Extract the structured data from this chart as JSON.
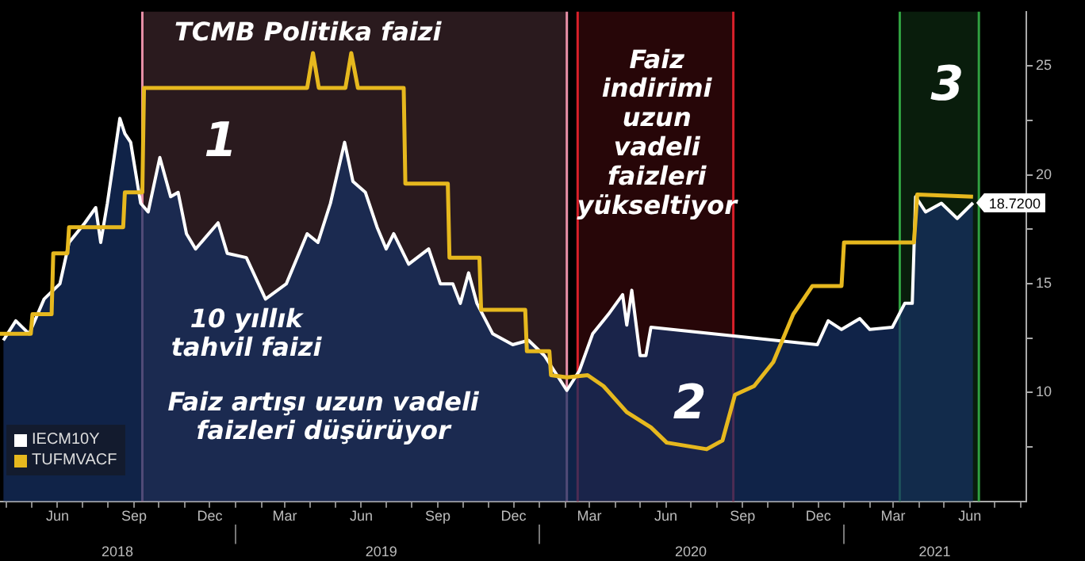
{
  "chart_data": {
    "type": "line",
    "xlim": [
      "2018-03-24",
      "2021-08-08"
    ],
    "ylim": [
      5,
      27.5
    ],
    "yticks": [
      {
        "value": 7.5,
        "label": null
      },
      10,
      {
        "value": 12.5,
        "label": null
      },
      15,
      {
        "value": 17.5,
        "label": null
      },
      20,
      {
        "value": 22.5,
        "label": null
      },
      25
    ],
    "xticks": [
      {
        "value": "2018-04-01",
        "label": null
      },
      {
        "value": "2018-05-01",
        "label": null
      },
      {
        "value": "2018-06-01",
        "label": "Jun"
      },
      {
        "value": "2018-07-01",
        "label": null
      },
      {
        "value": "2018-08-01",
        "label": null
      },
      {
        "value": "2018-09-01",
        "label": "Sep"
      },
      {
        "value": "2018-10-01",
        "label": null
      },
      {
        "value": "2018-11-01",
        "label": null
      },
      {
        "value": "2018-12-01",
        "label": "Dec"
      },
      {
        "value": "2019-01-01",
        "label": null
      },
      {
        "value": "2019-02-01",
        "label": null
      },
      {
        "value": "2019-03-01",
        "label": "Mar"
      },
      {
        "value": "2019-04-01",
        "label": null
      },
      {
        "value": "2019-05-01",
        "label": null
      },
      {
        "value": "2019-06-01",
        "label": "Jun"
      },
      {
        "value": "2019-07-01",
        "label": null
      },
      {
        "value": "2019-08-01",
        "label": null
      },
      {
        "value": "2019-09-01",
        "label": "Sep"
      },
      {
        "value": "2019-10-01",
        "label": null
      },
      {
        "value": "2019-11-01",
        "label": null
      },
      {
        "value": "2019-12-01",
        "label": "Dec"
      },
      {
        "value": "2020-01-01",
        "label": null
      },
      {
        "value": "2020-02-01",
        "label": null
      },
      {
        "value": "2020-03-01",
        "label": "Mar"
      },
      {
        "value": "2020-04-01",
        "label": null
      },
      {
        "value": "2020-05-01",
        "label": null
      },
      {
        "value": "2020-06-01",
        "label": "Jun"
      },
      {
        "value": "2020-07-01",
        "label": null
      },
      {
        "value": "2020-08-01",
        "label": null
      },
      {
        "value": "2020-09-01",
        "label": "Sep"
      },
      {
        "value": "2020-10-01",
        "label": null
      },
      {
        "value": "2020-11-01",
        "label": null
      },
      {
        "value": "2020-12-01",
        "label": "Dec"
      },
      {
        "value": "2021-01-01",
        "label": null
      },
      {
        "value": "2021-02-01",
        "label": null
      },
      {
        "value": "2021-03-01",
        "label": "Mar"
      },
      {
        "value": "2021-04-01",
        "label": null
      },
      {
        "value": "2021-05-01",
        "label": null
      },
      {
        "value": "2021-06-01",
        "label": "Jun"
      },
      {
        "value": "2021-07-01",
        "label": null
      },
      {
        "value": "2021-08-01",
        "label": null
      }
    ],
    "x2lim": [
      "2018-03-24",
      "2021-08-08"
    ],
    "x2ticks": [
      {
        "value": "2018-08-12",
        "label": "2018"
      },
      {
        "value": "2019-01-01",
        "label": null
      },
      {
        "value": "2019-06-25",
        "label": "2019"
      },
      {
        "value": "2020-01-01",
        "label": null
      },
      {
        "value": "2020-07-01",
        "label": "2020"
      },
      {
        "value": "2021-01-01",
        "label": null
      },
      {
        "value": "2021-04-20",
        "label": "2021"
      }
    ],
    "legend": "bottom left",
    "grid": false,
    "series": [
      {
        "name": "IECM10Y",
        "type": "area",
        "color": "#ffffff",
        "x": [
          "2018-03-28",
          "2018-04-12",
          "2018-04-28",
          "2018-05-16",
          "2018-06-04",
          "2018-06-15",
          "2018-07-04",
          "2018-07-17",
          "2018-07-23",
          "2018-07-31",
          "2018-08-15",
          "2018-08-21",
          "2018-08-28",
          "2018-09-09",
          "2018-09-18",
          "2018-10-02",
          "2018-10-15",
          "2018-10-24",
          "2018-11-03",
          "2018-11-14",
          "2018-12-11",
          "2018-12-22",
          "2019-01-14",
          "2019-02-06",
          "2019-03-03",
          "2019-03-28",
          "2019-04-10",
          "2019-04-25",
          "2019-05-12",
          "2019-05-22",
          "2019-06-06",
          "2019-06-20",
          "2019-07-01",
          "2019-07-10",
          "2019-07-28",
          "2019-08-21",
          "2019-09-04",
          "2019-09-19",
          "2019-09-28",
          "2019-10-08",
          "2019-10-18",
          "2019-11-06",
          "2019-11-30",
          "2019-12-19",
          "2020-01-07",
          "2020-02-03",
          "2020-02-18",
          "2020-03-05",
          "2020-03-24",
          "2020-04-10",
          "2020-04-15",
          "2020-04-21",
          "2020-05-01",
          "2020-05-08",
          "2020-05-14",
          "2020-11-30",
          "2020-12-13",
          "2020-12-29",
          "2021-01-20",
          "2021-02-01",
          "2021-02-28",
          "2021-03-15",
          "2021-03-24",
          "2021-03-28",
          "2021-04-09",
          "2021-04-28",
          "2021-05-17",
          "2021-06-05"
        ],
        "values": [
          12.4,
          13.3,
          12.7,
          14.3,
          15.0,
          16.9,
          17.8,
          18.5,
          16.9,
          18.7,
          22.6,
          21.9,
          21.5,
          18.7,
          18.3,
          20.8,
          19.0,
          19.2,
          17.3,
          16.6,
          17.8,
          16.4,
          16.2,
          14.3,
          15.0,
          17.3,
          16.9,
          18.7,
          21.5,
          19.7,
          19.2,
          17.6,
          16.6,
          17.3,
          15.9,
          16.6,
          15.0,
          15.0,
          14.1,
          15.5,
          14.1,
          12.7,
          12.2,
          12.4,
          11.7,
          10.1,
          11.0,
          12.7,
          13.6,
          14.5,
          13.1,
          14.7,
          11.7,
          11.7,
          13.0,
          12.2,
          13.3,
          12.9,
          13.4,
          12.9,
          13.0,
          14.1,
          14.1,
          19.0,
          18.3,
          18.7,
          18.0,
          18.72
        ],
        "value_labels": [
          null,
          null,
          null,
          null,
          null,
          null,
          null,
          null,
          null,
          null,
          null,
          null,
          null,
          null,
          null,
          null,
          null,
          null,
          null,
          null,
          null,
          null,
          null,
          null,
          null,
          null,
          null,
          null,
          null,
          null,
          null,
          null,
          null,
          null,
          null,
          null,
          null,
          null,
          null,
          null,
          null,
          null,
          null,
          null,
          null,
          null,
          null,
          null,
          null,
          null,
          null,
          null,
          null,
          null,
          null,
          null,
          null,
          null,
          null,
          null,
          null,
          null,
          null,
          null,
          null,
          null,
          null,
          "18.7200"
        ]
      },
      {
        "name": "TUFMVACF",
        "type": "line",
        "color": "#e6b81e",
        "x": [
          "2018-03-24",
          "2018-04-30",
          "2018-05-02",
          "2018-05-25",
          "2018-05-27",
          "2018-06-13",
          "2018-06-15",
          "2018-08-19",
          "2018-08-21",
          "2018-09-11",
          "2018-09-13",
          "2019-03-28",
          "2019-04-04",
          "2019-04-11",
          "2019-05-13",
          "2019-05-20",
          "2019-05-28",
          "2019-07-22",
          "2019-07-24",
          "2019-09-13",
          "2019-09-15",
          "2019-10-21",
          "2019-10-23",
          "2019-12-15",
          "2019-12-17",
          "2020-01-13",
          "2020-01-15",
          "2020-02-03",
          "2020-02-28",
          "2020-03-18",
          "2020-04-15",
          "2020-05-14",
          "2020-06-02",
          "2020-07-20",
          "2020-08-08",
          "2020-08-23",
          "2020-09-15",
          "2020-10-08",
          "2020-11-01",
          "2020-11-24",
          "2020-12-29",
          "2021-01-01",
          "2021-03-26",
          "2021-03-30",
          "2021-06-05"
        ],
        "values": [
          12.7,
          12.7,
          13.6,
          13.6,
          16.4,
          16.4,
          17.6,
          17.6,
          19.2,
          19.2,
          24.0,
          24.0,
          25.6,
          24.0,
          24.0,
          25.6,
          24.0,
          24.0,
          19.6,
          19.6,
          16.2,
          16.2,
          13.8,
          13.8,
          11.9,
          11.9,
          10.8,
          10.7,
          10.8,
          10.3,
          9.1,
          8.4,
          7.7,
          7.4,
          7.8,
          9.9,
          10.3,
          11.4,
          13.6,
          14.9,
          14.9,
          16.9,
          16.9,
          19.1,
          19.0
        ]
      }
    ],
    "bands": [
      {
        "axis": "x",
        "from": "2018-09-11",
        "to": "2020-02-03",
        "color": "#e890a8"
      },
      {
        "axis": "x",
        "from": "2020-02-16",
        "to": "2020-08-21",
        "color": "#d8202a"
      },
      {
        "axis": "x",
        "from": "2021-03-09",
        "to": "2021-06-12",
        "color": "#30a040"
      }
    ],
    "ref_lines": [
      {
        "axis": "x",
        "value": "2018-09-11",
        "color": "#e890a8"
      },
      {
        "axis": "x",
        "value": "2020-02-03",
        "color": "#e890a8"
      },
      {
        "axis": "x",
        "value": "2020-02-16",
        "color": "#d8202a"
      },
      {
        "axis": "x",
        "value": "2020-08-21",
        "color": "#d8202a"
      },
      {
        "axis": "x",
        "value": "2021-03-09",
        "color": "#30a040"
      },
      {
        "axis": "x",
        "value": "2021-06-12",
        "color": "#30a040"
      }
    ],
    "annotations": [
      "TCMB Politika faizi",
      "1",
      "10 yıllık\ntahvil faizi",
      "Faiz artışı uzun vadeli\nfaizleri düşürüyor",
      "Faiz\nindirimi\nuzun\nvadeli\nfaizleri\nyükseltiyor",
      "2",
      "3"
    ]
  }
}
